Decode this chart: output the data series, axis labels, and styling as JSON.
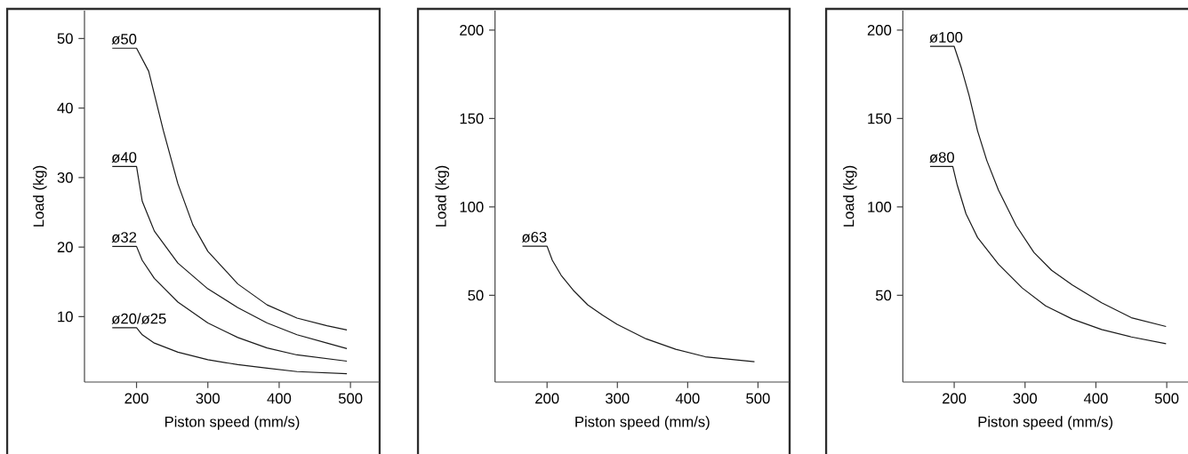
{
  "chart_data": [
    {
      "type": "line",
      "xlabel": "Piston speed (mm/s)",
      "ylabel": "Load (kg)",
      "xlim": [
        127,
        541
      ],
      "ylim": [
        0.6,
        54
      ],
      "xticks": [
        200,
        300,
        400,
        500
      ],
      "yticks": [
        10,
        20,
        30,
        40,
        50
      ],
      "line_style": "solid",
      "series": [
        {
          "name": "ø50",
          "color": "#1a1a1a",
          "x": [
            166,
            200,
            217,
            237.5,
            258,
            279,
            300,
            342,
            383,
            425,
            467,
            495
          ],
          "values": [
            48.6,
            48.6,
            45.3,
            36.8,
            29.1,
            23.2,
            19.4,
            14.7,
            11.7,
            9.8,
            8.7,
            8.1
          ]
        },
        {
          "name": "ø40",
          "color": "#1a1a1a",
          "x": [
            166,
            200,
            208,
            225,
            258,
            300,
            342,
            383,
            425,
            467,
            495
          ],
          "values": [
            31.6,
            31.6,
            26.6,
            22.3,
            17.7,
            14.0,
            11.3,
            9.1,
            7.4,
            6.2,
            5.4
          ]
        },
        {
          "name": "ø32",
          "color": "#1a1a1a",
          "x": [
            166,
            200,
            208,
            225,
            258,
            300,
            342,
            383,
            425,
            495
          ],
          "values": [
            20.1,
            20.1,
            18.1,
            15.5,
            12.1,
            9.1,
            7.0,
            5.5,
            4.5,
            3.6
          ]
        },
        {
          "name": "ø20/ø25",
          "color": "#1a1a1a",
          "x": [
            166,
            200,
            208,
            225,
            258,
            300,
            342,
            383,
            425,
            495
          ],
          "values": [
            8.4,
            8.4,
            7.4,
            6.2,
            4.9,
            3.8,
            3.1,
            2.6,
            2.1,
            1.8
          ]
        }
      ]
    },
    {
      "type": "line",
      "xlabel": "Piston speed (mm/s)",
      "ylabel": "Load (kg)",
      "xlim": [
        126,
        545
      ],
      "ylim": [
        1,
        211
      ],
      "xticks": [
        200,
        300,
        400,
        500
      ],
      "yticks": [
        50,
        100,
        150,
        200
      ],
      "line_style": "solid",
      "series": [
        {
          "name": "ø63",
          "color": "#1a1a1a",
          "x": [
            165,
            200,
            207.5,
            220,
            237,
            258,
            279,
            299.5,
            341,
            383,
            425,
            495
          ],
          "values": [
            77.8,
            77.8,
            69.8,
            61.4,
            53.0,
            44.6,
            38.8,
            33.7,
            25.4,
            19.5,
            15.3,
            12.5
          ]
        }
      ]
    },
    {
      "type": "line",
      "xlabel": "Piston speed (mm/s)",
      "ylabel": "Load (kg)",
      "xlim": [
        127.5,
        530
      ],
      "ylim": [
        1,
        211
      ],
      "xticks": [
        200,
        300,
        400,
        500
      ],
      "yticks": [
        50,
        100,
        150,
        200
      ],
      "line_style": "solid",
      "series": [
        {
          "name": "ø100",
          "color": "#1a1a1a",
          "x": [
            166,
            200,
            210.4,
            221,
            233,
            246,
            262.5,
            287.5,
            312.5,
            337.5,
            366.7,
            408,
            450,
            499
          ],
          "values": [
            190.8,
            190.8,
            178.2,
            163.1,
            143.0,
            126.3,
            109.5,
            89.4,
            74.3,
            64.2,
            55.9,
            45.8,
            37.4,
            32.4
          ]
        },
        {
          "name": "ø80",
          "color": "#1a1a1a",
          "x": [
            166,
            198,
            204,
            216.7,
            233,
            262.5,
            296,
            329,
            366.7,
            408,
            450,
            499
          ],
          "values": [
            122.9,
            122.9,
            112.8,
            96.1,
            82.7,
            67.6,
            54.2,
            44.1,
            36.6,
            30.7,
            26.5,
            22.7
          ]
        }
      ]
    }
  ]
}
